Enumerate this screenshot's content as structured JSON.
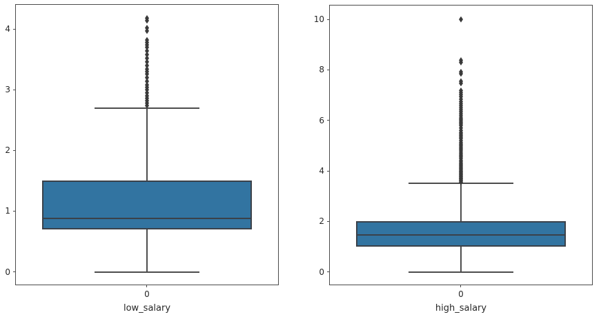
{
  "palette": {
    "figure_background": "#ffffff",
    "axes_background": "#ffffff",
    "spine_color": "#4a4a4a",
    "text_color": "#262626",
    "box_fill": "#3274a1",
    "box_edge": "#3b4149",
    "line_color": "#4c4c4c",
    "flier_color": "#3a3a3a"
  },
  "chart_data": [
    {
      "type": "boxplot",
      "title": "",
      "xlabel": "low_salary",
      "ylabel": "",
      "x_tick_labels": [
        "0"
      ],
      "yticks": [
        0,
        1,
        2,
        3,
        4
      ],
      "ylim": [
        -0.21,
        4.4
      ],
      "grid": false,
      "legend": null,
      "series": [
        {
          "name": "low_salary",
          "category": "0",
          "whisker_low": 0.0,
          "q1": 0.7,
          "median": 0.88,
          "q3": 1.5,
          "whisker_high": 2.7,
          "outliers": [
            2.74,
            2.78,
            2.82,
            2.86,
            2.9,
            2.95,
            3.0,
            3.04,
            3.08,
            3.14,
            3.2,
            3.26,
            3.3,
            3.34,
            3.4,
            3.46,
            3.52,
            3.58,
            3.64,
            3.7,
            3.74,
            3.78,
            3.82,
            3.97,
            4.02,
            4.14,
            4.18
          ]
        }
      ]
    },
    {
      "type": "boxplot",
      "title": "",
      "xlabel": "high_salary",
      "ylabel": "",
      "x_tick_labels": [
        "0"
      ],
      "yticks": [
        0,
        2,
        4,
        6,
        8,
        10
      ],
      "ylim": [
        -0.5,
        10.55
      ],
      "grid": false,
      "legend": null,
      "series": [
        {
          "name": "high_salary",
          "category": "0",
          "whisker_low": 0.0,
          "q1": 1.0,
          "median": 1.47,
          "q3": 2.0,
          "whisker_high": 3.5,
          "outliers": [
            3.55,
            3.6,
            3.64,
            3.68,
            3.72,
            3.76,
            3.8,
            3.84,
            3.88,
            3.92,
            3.96,
            4.0,
            4.05,
            4.1,
            4.15,
            4.2,
            4.25,
            4.3,
            4.36,
            4.42,
            4.5,
            4.56,
            4.62,
            4.68,
            4.75,
            4.82,
            4.88,
            4.94,
            5.0,
            5.06,
            5.12,
            5.2,
            5.28,
            5.34,
            5.4,
            5.46,
            5.52,
            5.6,
            5.7,
            5.8,
            5.86,
            5.92,
            5.98,
            6.04,
            6.1,
            6.18,
            6.26,
            6.34,
            6.42,
            6.5,
            6.58,
            6.66,
            6.74,
            6.84,
            6.94,
            7.02,
            7.1,
            7.18,
            7.47,
            7.55,
            7.85,
            7.92,
            8.3,
            8.38,
            10.0
          ]
        }
      ]
    }
  ]
}
